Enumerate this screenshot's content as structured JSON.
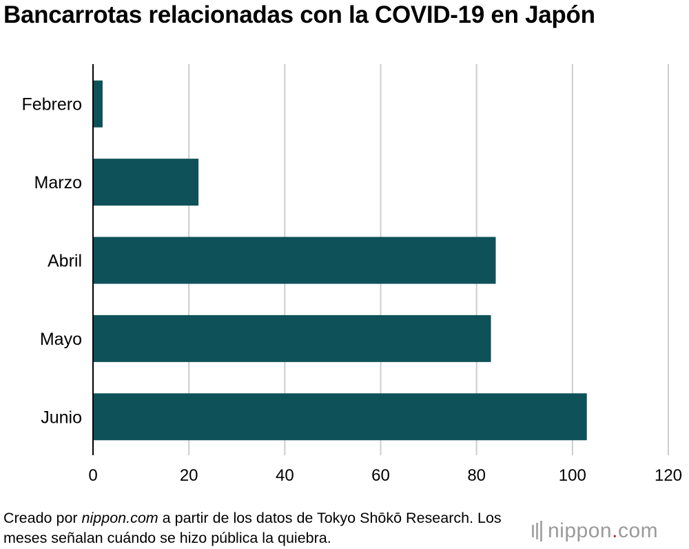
{
  "title": "Bancarrotas relacionadas con la COVID-19 en Japón",
  "footer": {
    "prefix": "Creado por ",
    "source_site": "nippon.com",
    "middle": " a partir de los datos de Tokyo Shōkō Research. Los meses señalan cuándo se hizo pública la quiebra."
  },
  "logo": {
    "name": "nippon",
    "dot": ".",
    "tld": "com"
  },
  "colors": {
    "bar": "#0e5158",
    "grid": "#cccccc",
    "axis": "#000000"
  },
  "chart_data": {
    "type": "bar",
    "orientation": "horizontal",
    "categories": [
      "Febrero",
      "Marzo",
      "Abril",
      "Mayo",
      "Junio"
    ],
    "values": [
      2,
      22,
      84,
      83,
      103
    ],
    "xlim": [
      0,
      120
    ],
    "xticks": [
      0,
      20,
      40,
      60,
      80,
      100,
      120
    ],
    "grid": true,
    "legend": "none"
  }
}
